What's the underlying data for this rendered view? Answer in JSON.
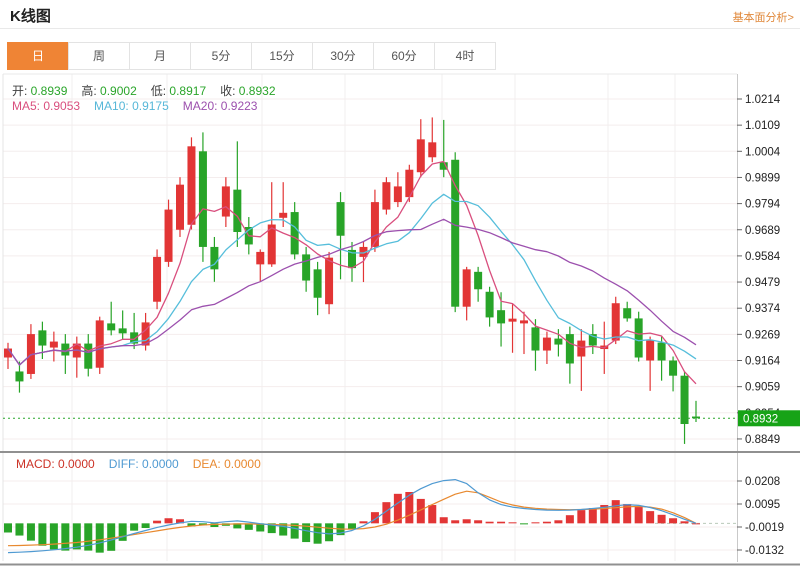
{
  "header": {
    "title": "K线图",
    "link": "基本面分析>"
  },
  "tabs": [
    {
      "label": "日",
      "active": true
    },
    {
      "label": "周",
      "active": false
    },
    {
      "label": "月",
      "active": false
    },
    {
      "label": "5分",
      "active": false
    },
    {
      "label": "15分",
      "active": false
    },
    {
      "label": "30分",
      "active": false
    },
    {
      "label": "60分",
      "active": false
    },
    {
      "label": "4时",
      "active": false
    }
  ],
  "info": {
    "ohlc": [
      {
        "label": "开:",
        "value": "0.8939"
      },
      {
        "label": "高:",
        "value": "0.9002"
      },
      {
        "label": "低:",
        "value": "0.8917"
      },
      {
        "label": "收:",
        "value": "0.8932"
      }
    ],
    "ohlc_label_color": "#3f3f3f",
    "ohlc_value_color": "#2aa52a",
    "ma": [
      {
        "label": "MA5:",
        "value": "0.9053",
        "color": "#d94f7e"
      },
      {
        "label": "MA10:",
        "value": "0.9175",
        "color": "#56b7d8"
      },
      {
        "label": "MA20:",
        "value": "0.9223",
        "color": "#9c50ae"
      }
    ]
  },
  "macd_info": [
    {
      "label": "MACD:",
      "value": "0.0000",
      "color": "#cc3327"
    },
    {
      "label": "DIFF:",
      "value": "0.0000",
      "color": "#4f9ad2"
    },
    {
      "label": "DEA:",
      "value": "0.0000",
      "color": "#e8892f"
    }
  ],
  "chart_data": {
    "type": "candlestick",
    "price_axis_ticks": [
      "1.0214",
      "1.0109",
      "1.0004",
      "0.9899",
      "0.9794",
      "0.9689",
      "0.9584",
      "0.9479",
      "0.9374",
      "0.9269",
      "0.9164",
      "0.9059",
      "0.8954",
      "0.8849"
    ],
    "macd_axis_ticks": [
      "0.0208",
      "0.0095",
      "-0.0019",
      "-0.0132"
    ],
    "current_price": 0.8932,
    "current_price_label": "0.8932",
    "ma_periods": [
      5,
      10,
      20
    ],
    "legend": [
      "MA5",
      "MA10",
      "MA20",
      "MACD",
      "DIFF",
      "DEA"
    ],
    "colors": {
      "up": "#e23535",
      "down": "#28a428",
      "ma5": "#d94f7e",
      "ma10": "#56bedb",
      "ma20": "#9c50ae",
      "diff": "#4f9ad2",
      "dea": "#e8892f",
      "price_line": "#2aa52a",
      "badge_bg": "#17a317"
    },
    "candles": [
      [
        0.9176,
        0.9235,
        0.913,
        0.9212
      ],
      [
        0.912,
        0.916,
        0.9035,
        0.908
      ],
      [
        0.911,
        0.931,
        0.909,
        0.927
      ],
      [
        0.9285,
        0.932,
        0.917,
        0.9224
      ],
      [
        0.9216,
        0.928,
        0.916,
        0.924
      ],
      [
        0.9232,
        0.927,
        0.911,
        0.9184
      ],
      [
        0.9176,
        0.926,
        0.9095,
        0.9232
      ],
      [
        0.9232,
        0.927,
        0.91,
        0.9131
      ],
      [
        0.9135,
        0.934,
        0.911,
        0.9325
      ],
      [
        0.9313,
        0.94,
        0.9265,
        0.9285
      ],
      [
        0.9293,
        0.9365,
        0.925,
        0.9273
      ],
      [
        0.9277,
        0.9355,
        0.921,
        0.9232
      ],
      [
        0.9224,
        0.9355,
        0.9204,
        0.9317
      ],
      [
        0.94,
        0.961,
        0.937,
        0.958
      ],
      [
        0.956,
        0.981,
        0.954,
        0.977
      ],
      [
        0.9689,
        0.99,
        0.966,
        0.987
      ],
      [
        0.9709,
        1.006,
        0.969,
        1.0024
      ],
      [
        1.0004,
        1.008,
        0.956,
        0.962
      ],
      [
        0.962,
        0.966,
        0.948,
        0.953
      ],
      [
        0.9742,
        0.99,
        0.97,
        0.9863
      ],
      [
        0.985,
        1.0044,
        0.962,
        0.968
      ],
      [
        0.97,
        0.974,
        0.959,
        0.963
      ],
      [
        0.955,
        0.961,
        0.948,
        0.96
      ],
      [
        0.955,
        0.988,
        0.954,
        0.971
      ],
      [
        0.9737,
        0.988,
        0.97,
        0.9757
      ],
      [
        0.976,
        0.98,
        0.957,
        0.959
      ],
      [
        0.959,
        0.962,
        0.944,
        0.9485
      ],
      [
        0.953,
        0.956,
        0.9346,
        0.9416
      ],
      [
        0.939,
        0.96,
        0.935,
        0.9577
      ],
      [
        0.98,
        0.984,
        0.949,
        0.9665
      ],
      [
        0.9608,
        0.964,
        0.948,
        0.9535
      ],
      [
        0.958,
        0.964,
        0.9479,
        0.962
      ],
      [
        0.962,
        0.985,
        0.96,
        0.98
      ],
      [
        0.977,
        0.99,
        0.975,
        0.988
      ],
      [
        0.98,
        0.992,
        0.978,
        0.9863
      ],
      [
        0.982,
        0.995,
        0.98,
        0.993
      ],
      [
        0.992,
        1.0133,
        0.99,
        1.0052
      ],
      [
        0.998,
        1.014,
        0.996,
        1.004
      ],
      [
        0.996,
        1.013,
        0.99,
        0.993
      ],
      [
        0.997,
        1.0,
        0.9358,
        0.938
      ],
      [
        0.938,
        0.954,
        0.9325,
        0.953
      ],
      [
        0.952,
        0.954,
        0.94,
        0.945
      ],
      [
        0.944,
        0.946,
        0.93,
        0.9337
      ],
      [
        0.9366,
        0.9438,
        0.922,
        0.9313
      ],
      [
        0.932,
        0.939,
        0.9195,
        0.9332
      ],
      [
        0.9313,
        0.936,
        0.919,
        0.9325
      ],
      [
        0.9297,
        0.933,
        0.9123,
        0.9204
      ],
      [
        0.9204,
        0.928,
        0.915,
        0.9256
      ],
      [
        0.9252,
        0.929,
        0.918,
        0.9228
      ],
      [
        0.927,
        0.93,
        0.9071,
        0.9152
      ],
      [
        0.918,
        0.929,
        0.9042,
        0.9244
      ],
      [
        0.927,
        0.931,
        0.919,
        0.9224
      ],
      [
        0.921,
        0.932,
        0.911,
        0.9224
      ],
      [
        0.9244,
        0.942,
        0.923,
        0.9394
      ],
      [
        0.9374,
        0.94,
        0.932,
        0.9333
      ],
      [
        0.9333,
        0.936,
        0.916,
        0.9176
      ],
      [
        0.9164,
        0.926,
        0.9042,
        0.9244
      ],
      [
        0.9236,
        0.926,
        0.9083,
        0.9164
      ],
      [
        0.9164,
        0.918,
        0.904,
        0.9103
      ],
      [
        0.9103,
        0.912,
        0.8829,
        0.8909
      ],
      [
        0.8939,
        0.9002,
        0.8917,
        0.8932
      ]
    ],
    "macd": {
      "hist": [
        -0.0045,
        -0.006,
        -0.0085,
        -0.011,
        -0.0128,
        -0.0134,
        -0.0128,
        -0.0134,
        -0.0144,
        -0.0135,
        -0.0086,
        -0.0036,
        -0.0023,
        0.0013,
        0.0025,
        0.002,
        -0.0015,
        -0.001,
        -0.0018,
        -0.0012,
        -0.0025,
        -0.0032,
        -0.004,
        -0.0048,
        -0.006,
        -0.0075,
        -0.0092,
        -0.01,
        -0.0088,
        -0.0058,
        -0.003,
        0.001,
        0.0055,
        0.0104,
        0.0145,
        0.0154,
        0.012,
        0.009,
        0.003,
        0.0015,
        0.002,
        0.0015,
        0.0008,
        0.0008,
        0.0005,
        -0.0005,
        0.0005,
        0.0008,
        0.0015,
        0.004,
        0.0065,
        0.0075,
        0.009,
        0.0114,
        0.0095,
        0.008,
        0.006,
        0.0042,
        0.0025,
        0.001,
        0.0
      ],
      "diff": [
        -0.0144,
        -0.0142,
        -0.0139,
        -0.0135,
        -0.013,
        -0.0124,
        -0.0117,
        -0.0108,
        -0.0096,
        -0.0082,
        -0.0066,
        -0.005,
        -0.0035,
        -0.002,
        -0.0008,
        0.0002,
        0.001,
        0.0008,
        0.0002,
        0.0008,
        0.0012,
        0.0006,
        -0.0002,
        -0.0008,
        -0.0015,
        -0.0025,
        -0.0036,
        -0.0046,
        -0.0052,
        -0.0048,
        -0.0035,
        -0.0012,
        0.002,
        0.006,
        0.01,
        0.0138,
        0.017,
        0.0195,
        0.021,
        0.0215,
        0.0195,
        0.015,
        0.0115,
        0.0092,
        0.008,
        0.0073,
        0.0068,
        0.0065,
        0.0064,
        0.0065,
        0.0068,
        0.0073,
        0.0079,
        0.0086,
        0.0092,
        0.0088,
        0.0078,
        0.0062,
        0.0042,
        0.002,
        0.0
      ],
      "dea": [
        -0.011,
        -0.0109,
        -0.0107,
        -0.0105,
        -0.0102,
        -0.0098,
        -0.0094,
        -0.0088,
        -0.0081,
        -0.0073,
        -0.0064,
        -0.0055,
        -0.0046,
        -0.0037,
        -0.0028,
        -0.002,
        -0.0013,
        -0.0008,
        -0.0005,
        -0.0004,
        -0.0003,
        -0.0003,
        -0.0004,
        -0.0005,
        -0.0007,
        -0.001,
        -0.0014,
        -0.0019,
        -0.0024,
        -0.0028,
        -0.0029,
        -0.0026,
        -0.0018,
        -0.0004,
        0.0016,
        0.004,
        0.0066,
        0.0092,
        0.0118,
        0.0143,
        0.0158,
        0.015,
        0.0128,
        0.0105,
        0.009,
        0.008,
        0.0074,
        0.007,
        0.0068,
        0.0067,
        0.0068,
        0.007,
        0.0073,
        0.0077,
        0.0081,
        0.0083,
        0.008,
        0.007,
        0.0052,
        0.0028,
        0.0
      ]
    }
  }
}
